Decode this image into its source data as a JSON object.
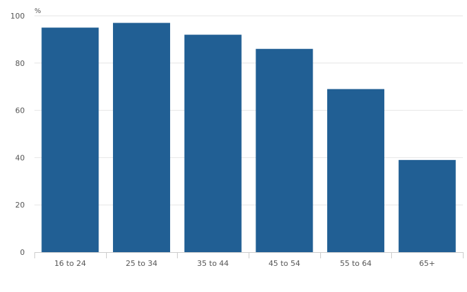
{
  "chart_data": {
    "type": "bar",
    "title": "",
    "xlabel": "",
    "ylabel": "%",
    "categories": [
      "16 to 24",
      "25 to 34",
      "35 to 44",
      "45 to 54",
      "55 to 64",
      "65+"
    ],
    "values": [
      95,
      97,
      92,
      86,
      69,
      39
    ],
    "ylim": [
      0,
      100
    ],
    "yticks": [
      0,
      20,
      40,
      60,
      80,
      100
    ],
    "grid": true,
    "bar_color": "#215f94",
    "grid_color": "#e6e6e6",
    "axis_color": "#cccccc",
    "text_color": "#555555"
  }
}
